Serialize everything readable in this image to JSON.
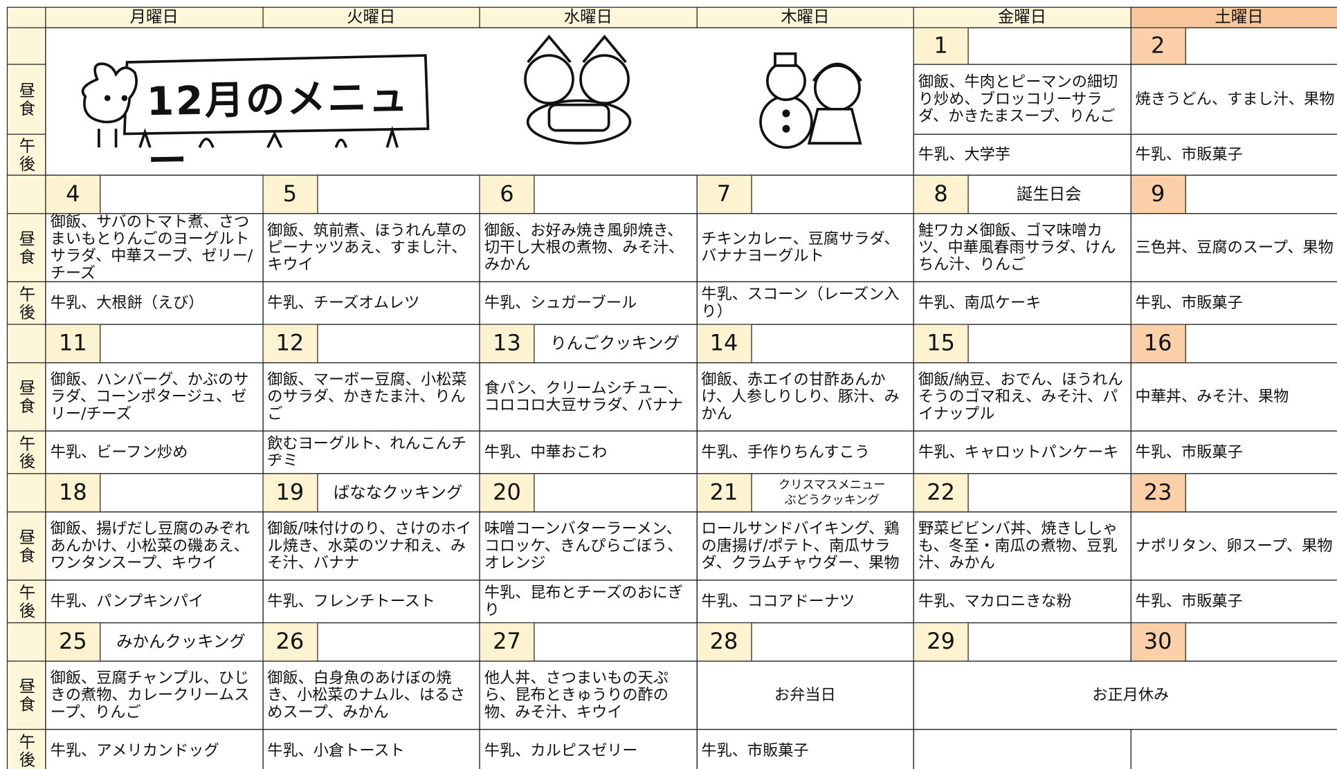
{
  "title": "12月のメニュー",
  "header": {
    "days": [
      "月曜日",
      "火曜日",
      "水曜日",
      "木曜日",
      "金曜日",
      "土曜日"
    ]
  },
  "labels": {
    "lunch": "昼食",
    "snack": "午後"
  },
  "weeks": [
    {
      "days": [
        {
          "date": "1",
          "lunch": "御飯、牛肉とピーマンの細切り炒め、ブロッコリーサラダ、かきたまスープ、りんご",
          "snack": "牛乳、大学芋"
        },
        {
          "date": "2",
          "lunch": "焼きうどん、すまし汁、果物",
          "snack": "牛乳、市販菓子"
        }
      ]
    },
    {
      "days": [
        {
          "date": "4",
          "lunch": "御飯、サバのトマト煮、さつまいもとりんごのヨーグルトサラダ、中華スープ、ゼリー/チーズ",
          "snack": "牛乳、大根餅（えび）"
        },
        {
          "date": "5",
          "lunch": "御飯、筑前煮、ほうれん草のピーナッツあえ、すまし汁、キウイ",
          "snack": "牛乳、チーズオムレツ"
        },
        {
          "date": "6",
          "lunch": "御飯、お好み焼き風卵焼き、切干し大根の煮物、みそ汁、みかん",
          "snack": "牛乳、シュガーブール"
        },
        {
          "date": "7",
          "lunch": "チキンカレー、豆腐サラダ、バナナヨーグルト",
          "snack": "牛乳、スコーン（レーズン入り）"
        },
        {
          "date": "8",
          "event": [
            "誕生日会"
          ],
          "lunch": "鮭ワカメ御飯、ゴマ味噌カツ、中華風春雨サラダ、けんちん汁、りんご",
          "snack": "牛乳、南瓜ケーキ"
        },
        {
          "date": "9",
          "lunch": "三色丼、豆腐のスープ、果物",
          "snack": "牛乳、市販菓子"
        }
      ]
    },
    {
      "days": [
        {
          "date": "11",
          "lunch": "御飯、ハンバーグ、かぶのサラダ、コーンポタージュ、ゼリー/チーズ",
          "snack": "牛乳、ビーフン炒め"
        },
        {
          "date": "12",
          "lunch": "御飯、マーボー豆腐、小松菜のサラダ、かきたま汁、りんご",
          "snack": "飲むヨーグルト、れんこんチヂミ"
        },
        {
          "date": "13",
          "event": [
            "りんごクッキング"
          ],
          "lunch": "食パン、クリームシチュー、コロコロ大豆サラダ、バナナ",
          "snack": "牛乳、中華おこわ"
        },
        {
          "date": "14",
          "lunch": "御飯、赤エイの甘酢あんかけ、人参しりしり、豚汁、みかん",
          "snack": "牛乳、手作りちんすこう"
        },
        {
          "date": "15",
          "lunch": "御飯/納豆、おでん、ほうれんそうのゴマ和え、みそ汁、パイナップル",
          "snack": "牛乳、キャロットパンケーキ"
        },
        {
          "date": "16",
          "lunch": "中華丼、みそ汁、果物",
          "snack": "牛乳、市販菓子"
        }
      ]
    },
    {
      "days": [
        {
          "date": "18",
          "lunch": "御飯、揚げだし豆腐のみぞれあんかけ、小松菜の磯あえ、ワンタンスープ、キウイ",
          "snack": "牛乳、パンプキンパイ"
        },
        {
          "date": "19",
          "event": [
            "ばななクッキング"
          ],
          "lunch": "御飯/味付けのり、さけのホイル焼き、水菜のツナ和え、みそ汁、バナナ",
          "snack": "牛乳、フレンチトースト"
        },
        {
          "date": "20",
          "lunch": "味噌コーンバターラーメン、コロッケ、きんぴらごぼう、オレンジ",
          "snack": "牛乳、昆布とチーズのおにぎり"
        },
        {
          "date": "21",
          "event": [
            "クリスマスメニュー",
            "ぶどうクッキング"
          ],
          "lunch": "ロールサンドバイキング、鶏の唐揚げ/ポテト、南瓜サラダ、クラムチャウダー、果物",
          "snack": "牛乳、ココアドーナツ"
        },
        {
          "date": "22",
          "lunch": "野菜ビビンバ丼、焼きししゃも、冬至・南瓜の煮物、豆乳汁、みかん",
          "snack": "牛乳、マカロニきな粉"
        },
        {
          "date": "23",
          "lunch": "ナポリタン、卵スープ、果物",
          "snack": "牛乳、市販菓子"
        }
      ]
    },
    {
      "holiday": "お正月休み",
      "days": [
        {
          "date": "25",
          "event": [
            "みかんクッキング"
          ],
          "lunch": "御飯、豆腐チャンプル、ひじきの煮物、カレークリームスープ、りんご",
          "snack": "牛乳、アメリカンドッグ"
        },
        {
          "date": "26",
          "lunch": "御飯、白身魚のあけぼの焼き、小松菜のナムル、はるさめスープ、みかん",
          "snack": "牛乳、小倉トースト"
        },
        {
          "date": "27",
          "lunch": "他人丼、さつまいもの天ぷら、昆布ときゅうりの酢の物、みそ汁、キウイ",
          "snack": "牛乳、カルピスゼリー"
        },
        {
          "date": "28",
          "lunch": "お弁当日",
          "snack": "牛乳、市販菓子"
        },
        {
          "date": "29"
        },
        {
          "date": "30"
        }
      ]
    }
  ]
}
